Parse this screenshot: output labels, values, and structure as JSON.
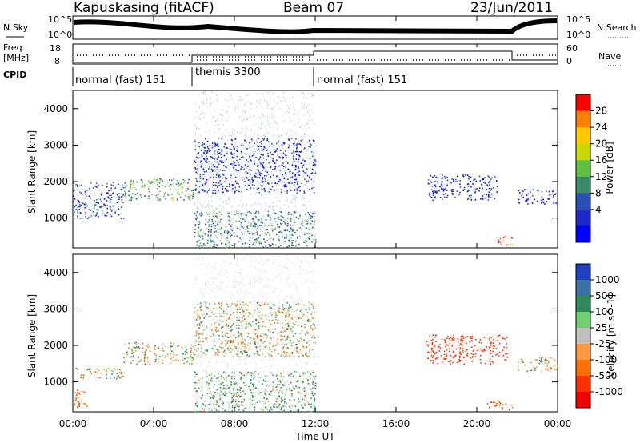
{
  "header": {
    "station": "Kapuskasing (fitACF)",
    "beam": "Beam 07",
    "date": "23/Jun/2011"
  },
  "noise_panel": {
    "left_label": "N.Sky",
    "right_label": "N.Search",
    "left_ticks": [
      "10^5",
      "10^0"
    ],
    "right_ticks": [
      "10^5",
      "10^0"
    ]
  },
  "freq_panel": {
    "left_label_line1": "Freq.",
    "left_label_line2": "[MHz]",
    "right_label": "Nave",
    "left_ticks": [
      "18",
      "8"
    ],
    "right_ticks": [
      "60",
      "0"
    ]
  },
  "cpid": {
    "label": "CPID",
    "segments": [
      {
        "text": "normal (fast) 151",
        "start_hour": 0,
        "end_hour": 6
      },
      {
        "text": "themis 3300",
        "start_hour": 6,
        "end_hour": 12
      },
      {
        "text": "normal (fast) 151",
        "start_hour": 12,
        "end_hour": 24
      }
    ]
  },
  "axes": {
    "xlabel": "Time UT",
    "ylabel": "Slant Range [km]",
    "x_ticks": [
      "00:00",
      "04:00",
      "08:00",
      "12:00",
      "16:00",
      "20:00",
      "00:00"
    ],
    "x_tick_hours": [
      0,
      4,
      8,
      12,
      16,
      20,
      24
    ],
    "y_ticks": [
      1000,
      2000,
      3000,
      4000
    ],
    "y_range_km": [
      180,
      4500
    ]
  },
  "power_colorbar": {
    "label": "Power [dB]",
    "ticks": [
      "28",
      "24",
      "20",
      "16",
      "12",
      "8",
      "4"
    ],
    "colors": [
      "#ff0000",
      "#ff8000",
      "#ffc800",
      "#c8d800",
      "#60c040",
      "#3a8a6a",
      "#2850b4",
      "#1e28c8",
      "#0000ff"
    ]
  },
  "velocity_colorbar": {
    "label": "Velocity [m s^-1]",
    "ticks": [
      "1000",
      "500",
      "100",
      "25",
      "-25",
      "-100",
      "-500",
      "-1000"
    ],
    "colors": [
      "#2040c0",
      "#3a70a8",
      "#2e8a5a",
      "#70d070",
      "#c0c0c0",
      "#ff9a40",
      "#ff7000",
      "#ff3000",
      "#ee0000"
    ]
  },
  "chart_data": [
    {
      "type": "heatmap",
      "title": "",
      "xlabel": "Time UT",
      "ylabel": "Slant Range [km]",
      "colorbar": "Power [dB]",
      "xlim_hours": [
        0,
        24
      ],
      "ylim_km": [
        180,
        4500
      ],
      "scatter_regions": [
        {
          "start_hour": 0.0,
          "end_hour": 2.5,
          "range_km": [
            1000,
            2000
          ],
          "level_db": 8
        },
        {
          "start_hour": 2.5,
          "end_hour": 6.0,
          "range_km": [
            1500,
            2100
          ],
          "level_db": 14
        },
        {
          "start_hour": 6.0,
          "end_hour": 12.0,
          "range_km": [
            200,
            1200
          ],
          "level_db": 12
        },
        {
          "start_hour": 6.0,
          "end_hour": 12.0,
          "range_km": [
            1700,
            3200
          ],
          "level_db": 6
        },
        {
          "start_hour": 17.5,
          "end_hour": 21.0,
          "range_km": [
            1500,
            2200
          ],
          "level_db": 6
        },
        {
          "start_hour": 21.0,
          "end_hour": 21.8,
          "range_km": [
            250,
            500
          ],
          "level_db": 28
        },
        {
          "start_hour": 22.0,
          "end_hour": 24.0,
          "range_km": [
            1400,
            1800
          ],
          "level_db": 6
        }
      ]
    },
    {
      "type": "heatmap",
      "title": "",
      "xlabel": "Time UT",
      "ylabel": "Slant Range [km]",
      "colorbar": "Velocity [m s^-1]",
      "xlim_hours": [
        0,
        24
      ],
      "ylim_km": [
        180,
        4500
      ],
      "scatter_regions": [
        {
          "start_hour": 0.0,
          "end_hour": 2.5,
          "range_km": [
            1100,
            1400
          ],
          "velocity": 0
        },
        {
          "start_hour": 0.0,
          "end_hour": 0.7,
          "range_km": [
            300,
            800
          ],
          "velocity": -300
        },
        {
          "start_hour": 2.5,
          "end_hour": 6.0,
          "range_km": [
            1500,
            2100
          ],
          "velocity": 0
        },
        {
          "start_hour": 6.0,
          "end_hour": 12.0,
          "range_km": [
            200,
            1300
          ],
          "velocity": 100
        },
        {
          "start_hour": 6.0,
          "end_hour": 12.0,
          "range_km": [
            1700,
            3200
          ],
          "velocity": 0
        },
        {
          "start_hour": 17.5,
          "end_hour": 21.5,
          "range_km": [
            1500,
            2300
          ],
          "velocity": -600
        },
        {
          "start_hour": 20.5,
          "end_hour": 21.8,
          "range_km": [
            250,
            500
          ],
          "velocity": -300
        },
        {
          "start_hour": 22.0,
          "end_hour": 24.0,
          "range_km": [
            1300,
            1700
          ],
          "velocity": 0
        }
      ]
    }
  ]
}
